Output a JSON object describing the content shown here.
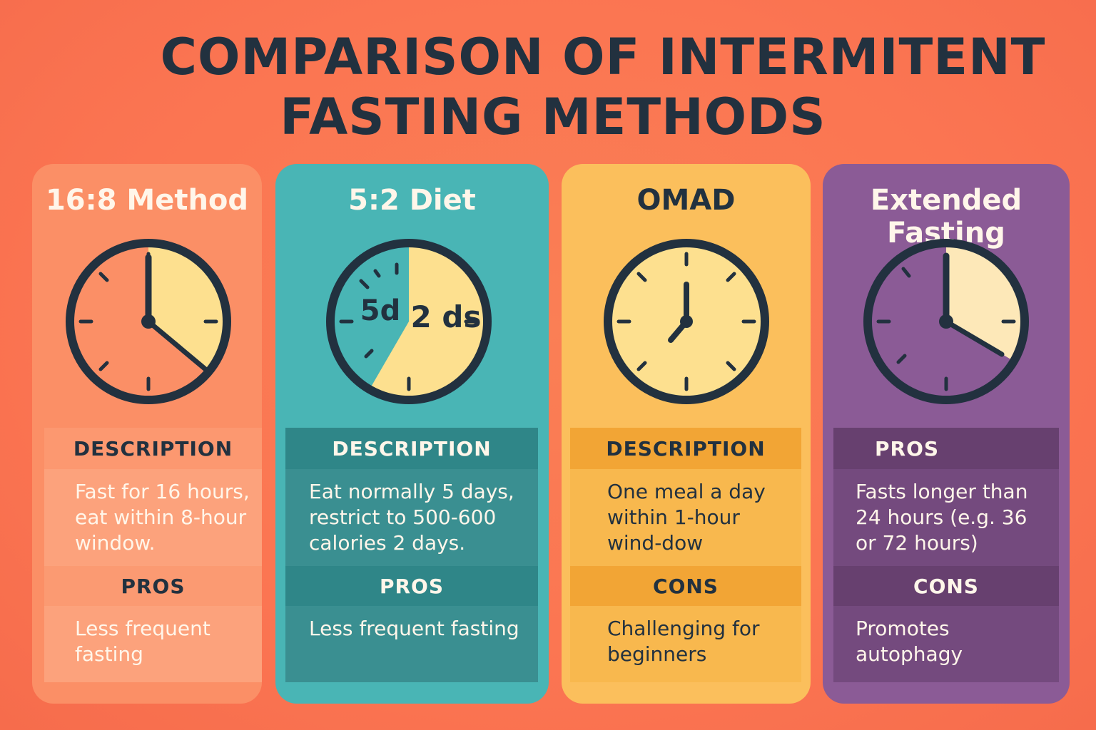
{
  "title_line1": "COMPARISON OF INTERMITENT",
  "title_line2": "FASTING METHODS",
  "colors": {
    "background": "#fb7552",
    "ink": "#22313f",
    "card_168": "#fb8f66",
    "card_52": "#49b5b5",
    "card_omad": "#fbbf5c",
    "card_ext": "#8b5b96",
    "clock_fill": "#fde08f"
  },
  "cards": [
    {
      "title": "16:8 Method",
      "clock_icon": "clock-icon",
      "section1_header": "DESCRIPTION",
      "section1_text": "Fast for 16 hours, eat within 8-hour window.",
      "section2_header": "PROS",
      "section2_text": "Less frequent fasting"
    },
    {
      "title": "5:2 Diet",
      "clock_icon": "clock-icon",
      "clock_label_left": "5d",
      "clock_label_right": "2 ds",
      "section1_header": "DESCRIPTION",
      "section1_text": "Eat normally 5 days, restrict to 500-600 calories 2 days.",
      "section2_header": "PROS",
      "section2_text": "Less frequent fasting"
    },
    {
      "title": "OMAD",
      "clock_icon": "clock-icon",
      "section1_header": "DESCRIPTION",
      "section1_text": "One meal a day within 1-hour wind-dow",
      "section2_header": "CONS",
      "section2_text": "Challenging for beginners"
    },
    {
      "title": "Extended Fasting",
      "clock_icon": "clock-icon",
      "section1_header": "PROS",
      "section1_text": "Fasts longer than 24 hours (e.g. 36 or 72 hours)",
      "section2_header": "CONS",
      "section2_text": "Promotes autophagy"
    }
  ]
}
